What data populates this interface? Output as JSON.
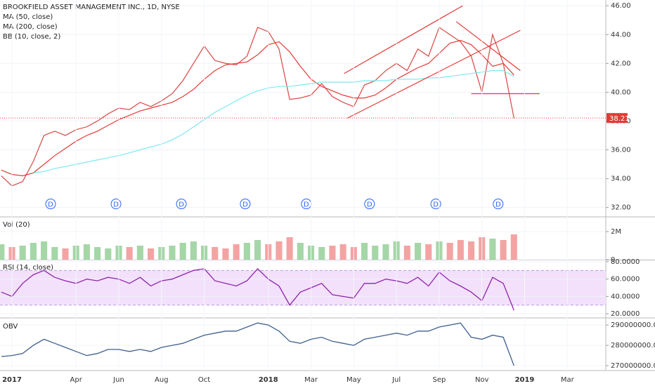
{
  "chart_data": [
    {
      "type": "line",
      "title": "BROOKFIELD ASSET MANAGEMENT INC., 1D, NYSE",
      "annotations": [
        "BB (10, close, 2)"
      ],
      "xlim": [
        -0.56,
        27.8
      ],
      "ylim": [
        31.4,
        46.4
      ],
      "yticks": [
        {
          "value": 32,
          "label": "32.00"
        },
        {
          "value": 34,
          "label": "34.00"
        },
        {
          "value": 36,
          "label": "36.00"
        },
        {
          "value": 38,
          "label": "38.00"
        },
        {
          "value": 40,
          "label": "40.00"
        },
        {
          "value": 42,
          "label": "42.00"
        },
        {
          "value": 44,
          "label": "44.00"
        },
        {
          "value": 46,
          "label": "46.00"
        }
      ],
      "x": [
        -0.5,
        0,
        0.5,
        1,
        1.5,
        2,
        2.5,
        3,
        3.5,
        4,
        4.5,
        5,
        5.5,
        6,
        6.5,
        7,
        7.5,
        8,
        8.5,
        9,
        9.5,
        10,
        10.5,
        11,
        11.5,
        12,
        12.5,
        13,
        13.5,
        14,
        14.5,
        15,
        15.5,
        16,
        16.5,
        17,
        17.5,
        18,
        18.5,
        19,
        19.5,
        20,
        20.5,
        21,
        21.5,
        22,
        22.5,
        23,
        23.5
      ],
      "series": [
        {
          "color": "#d9534f",
          "values": [
            34.2,
            33.5,
            33.8,
            35.2,
            37.0,
            37.3,
            37.0,
            37.4,
            37.6,
            38.0,
            38.5,
            38.9,
            38.8,
            39.3,
            39.0,
            39.4,
            39.9,
            40.8,
            42.0,
            43.2,
            42.2,
            42.0,
            41.9,
            42.5,
            44.5,
            44.2,
            43.0,
            39.5,
            39.6,
            39.8,
            40.6,
            39.7,
            39.3,
            39.0,
            40.5,
            40.8,
            41.5,
            42.0,
            41.5,
            43.0,
            42.5,
            44.5,
            44.0,
            43.5,
            42.5,
            40.0,
            44.0,
            42.0,
            38.21
          ]
        },
        {
          "name": "MA (50, close)",
          "color": "#e53935",
          "values": [
            34.6,
            34.3,
            34.2,
            34.4,
            35.0,
            35.6,
            36.1,
            36.6,
            37.0,
            37.3,
            37.7,
            38.1,
            38.4,
            38.7,
            38.9,
            39.1,
            39.3,
            39.7,
            40.2,
            40.9,
            41.5,
            41.9,
            42.0,
            42.1,
            42.6,
            43.3,
            43.5,
            42.8,
            41.8,
            40.9,
            40.4,
            40.1,
            39.8,
            39.6,
            39.6,
            39.8,
            40.3,
            40.9,
            41.3,
            41.7,
            42.0,
            42.7,
            43.4,
            43.6,
            43.3,
            42.6,
            41.8,
            42.0,
            41.2
          ]
        },
        {
          "name": "MA (200, close)",
          "color": "#7fe8ef",
          "values": [
            null,
            null,
            null,
            34.4,
            34.5,
            34.7,
            34.85,
            35.0,
            35.15,
            35.3,
            35.45,
            35.6,
            35.8,
            36.0,
            36.2,
            36.4,
            36.7,
            37.1,
            37.6,
            38.1,
            38.6,
            39.0,
            39.4,
            39.8,
            40.1,
            40.3,
            40.4,
            40.4,
            40.5,
            40.6,
            40.7,
            40.7,
            40.7,
            40.7,
            40.8,
            40.8,
            40.8,
            40.9,
            40.9,
            40.9,
            41.0,
            41.0,
            41.1,
            41.2,
            41.3,
            41.4,
            41.5,
            41.5,
            41.1
          ]
        }
      ],
      "drawings": [
        [
          15.55,
          41.3,
          21.1,
          46.0
        ],
        [
          15.7,
          38.2,
          23.8,
          44.3
        ],
        [
          20.8,
          44.9,
          23.8,
          41.5
        ],
        [
          21.5,
          39.9,
          24.7,
          39.9
        ]
      ],
      "drawing_color": "#e53935",
      "markers": {
        "label": "D",
        "x": [
          1.81,
          4.87,
          7.93,
          10.92,
          13.78,
          16.74,
          19.84,
          22.76
        ],
        "y": 32.25,
        "color": "#2962ff"
      },
      "price_label": {
        "value": 38.21,
        "label": "38.21",
        "color": "#e53935"
      }
    },
    {
      "type": "bar",
      "title": "Vol (20)",
      "xlim": [
        -0.56,
        27.8
      ],
      "ylim": [
        0,
        3000000
      ],
      "yticks": [
        0,
        {
          "value": 2000000,
          "label": "2M"
        }
      ],
      "x": [
        -0.5,
        0,
        0.5,
        1,
        1.5,
        2,
        2.5,
        3,
        3.5,
        4,
        4.5,
        5,
        5.5,
        6,
        6.5,
        7,
        7.5,
        8,
        8.5,
        9,
        9.5,
        10,
        10.5,
        11,
        11.5,
        12,
        12.5,
        13,
        13.5,
        14,
        14.5,
        15,
        15.5,
        16,
        16.5,
        17,
        17.5,
        18,
        18.5,
        19,
        19.5,
        20,
        20.5,
        21,
        21.5,
        22,
        22.5,
        23,
        23.5
      ],
      "values": [
        1100000,
        900000,
        1000000,
        1200000,
        1300000,
        900000,
        800000,
        1000000,
        1100000,
        900000,
        800000,
        1000000,
        900000,
        1000000,
        800000,
        900000,
        1000000,
        1200000,
        1300000,
        1000000,
        900000,
        800000,
        1100000,
        1200000,
        1400000,
        1100000,
        1300000,
        1600000,
        1200000,
        1000000,
        900000,
        1000000,
        1100000,
        900000,
        1200000,
        1000000,
        1100000,
        1300000,
        1000000,
        1200000,
        1100000,
        1300000,
        1200000,
        1400000,
        1300000,
        1600000,
        1500000,
        1400000,
        1800000
      ],
      "colors": [
        "#a5d6a7",
        "#f4a3a3"
      ]
    },
    {
      "type": "line",
      "title": "RSI (14, close)",
      "xlim": [
        -0.56,
        27.8
      ],
      "ylim": [
        16,
        81.6
      ],
      "yticks": [
        {
          "value": 20,
          "label": "20.0000"
        },
        {
          "value": 40,
          "label": "40.0000"
        },
        {
          "value": 60,
          "label": "60.0000"
        },
        {
          "value": 80,
          "label": "80.0000"
        }
      ],
      "band": [
        30,
        70
      ],
      "band_color": "#f3e0fb",
      "x": [
        -0.5,
        0,
        0.5,
        1,
        1.5,
        2,
        2.5,
        3,
        3.5,
        4,
        4.5,
        5,
        5.5,
        6,
        6.5,
        7,
        7.5,
        8,
        8.5,
        9,
        9.5,
        10,
        10.5,
        11,
        11.5,
        12,
        12.5,
        13,
        13.5,
        14,
        14.5,
        15,
        15.5,
        16,
        16.5,
        17,
        17.5,
        18,
        18.5,
        19,
        19.5,
        20,
        20.5,
        21,
        21.5,
        22,
        22.5,
        23,
        23.5
      ],
      "series": [
        {
          "color": "#8e24aa",
          "values": [
            45,
            40,
            55,
            65,
            70,
            62,
            58,
            55,
            60,
            58,
            62,
            60,
            55,
            62,
            52,
            58,
            60,
            65,
            70,
            72,
            58,
            55,
            52,
            58,
            72,
            60,
            52,
            30,
            45,
            50,
            55,
            42,
            40,
            38,
            55,
            55,
            60,
            58,
            55,
            62,
            52,
            68,
            58,
            52,
            45,
            35,
            62,
            55,
            24
          ]
        }
      ]
    },
    {
      "type": "line",
      "title": "OBV",
      "xlim": [
        -0.56,
        27.8
      ],
      "ylim": [
        267600000,
        292800000
      ],
      "yticks": [
        {
          "value": 270000000,
          "label": "270000000.0000"
        },
        {
          "value": 280000000,
          "label": "280000000.0000"
        },
        {
          "value": 290000000,
          "label": "290000000.0000"
        }
      ],
      "xticks": [
        {
          "value": 0,
          "label": "2017"
        },
        {
          "value": 3,
          "label": "Apr"
        },
        {
          "value": 5,
          "label": "Jun"
        },
        {
          "value": 7,
          "label": "Aug"
        },
        {
          "value": 9,
          "label": "Oct"
        },
        {
          "value": 12,
          "label": "2018"
        },
        {
          "value": 14,
          "label": "Mar"
        },
        {
          "value": 16,
          "label": "May"
        },
        {
          "value": 18,
          "label": "Jul"
        },
        {
          "value": 20,
          "label": "Sep"
        },
        {
          "value": 22,
          "label": "Nov"
        },
        {
          "value": 24,
          "label": "2019"
        },
        {
          "value": 26,
          "label": "Mar"
        }
      ],
      "x": [
        -0.5,
        0,
        0.5,
        1,
        1.5,
        2,
        2.5,
        3,
        3.5,
        4,
        4.5,
        5,
        5.5,
        6,
        6.5,
        7,
        7.5,
        8,
        8.5,
        9,
        9.5,
        10,
        10.5,
        11,
        11.5,
        12,
        12.5,
        13,
        13.5,
        14,
        14.5,
        15,
        15.5,
        16,
        16.5,
        17,
        17.5,
        18,
        18.5,
        19,
        19.5,
        20,
        20.5,
        21,
        21.5,
        22,
        22.5,
        23,
        23.5
      ],
      "series": [
        {
          "color": "#3f5f8f",
          "values": [
            274500000,
            275000000,
            276000000,
            280000000,
            283000000,
            281000000,
            279000000,
            277000000,
            275000000,
            276000000,
            278000000,
            278000000,
            277000000,
            278000000,
            277000000,
            279000000,
            280000000,
            281000000,
            283000000,
            285000000,
            286000000,
            287000000,
            287000000,
            289000000,
            291000000,
            290000000,
            287000000,
            282000000,
            281000000,
            283000000,
            284000000,
            282000000,
            281000000,
            280000000,
            283000000,
            284000000,
            285000000,
            286000000,
            285000000,
            287000000,
            287000000,
            289000000,
            290000000,
            291000000,
            284000000,
            283000000,
            285000000,
            284000000,
            270000000
          ]
        }
      ]
    }
  ]
}
